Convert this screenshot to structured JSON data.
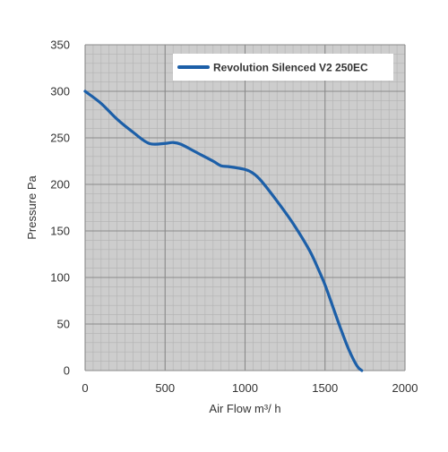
{
  "chart_data": {
    "type": "line",
    "xlabel": "Air Flow m³/ h",
    "ylabel": "Pressure Pa",
    "xlim": [
      0,
      2000
    ],
    "ylim": [
      0,
      350
    ],
    "x_ticks": [
      "0",
      "500",
      "1000",
      "1500",
      "2000"
    ],
    "y_ticks": [
      "0",
      "50",
      "100",
      "150",
      "200",
      "250",
      "300",
      "350"
    ],
    "grid": true,
    "legend_position": "top-right",
    "series": [
      {
        "name": "Revolution Silenced V2 250EC",
        "color": "#1c5fa8",
        "x": [
          0,
          100,
          200,
          300,
          400,
          500,
          550,
          600,
          700,
          800,
          850,
          900,
          1000,
          1050,
          1100,
          1200,
          1300,
          1400,
          1450,
          1500,
          1550,
          1600,
          1650,
          1700,
          1730
        ],
        "y": [
          300,
          287,
          270,
          256,
          244,
          244,
          245,
          243,
          234,
          225,
          220,
          219,
          216,
          212,
          204,
          182,
          158,
          130,
          112,
          92,
          68,
          44,
          22,
          5,
          0
        ]
      }
    ]
  },
  "colors": {
    "plot_background": "#cdcdcd",
    "minor_grid": "#b2b2b2",
    "major_grid": "#8a8a8a",
    "text": "#333333"
  }
}
